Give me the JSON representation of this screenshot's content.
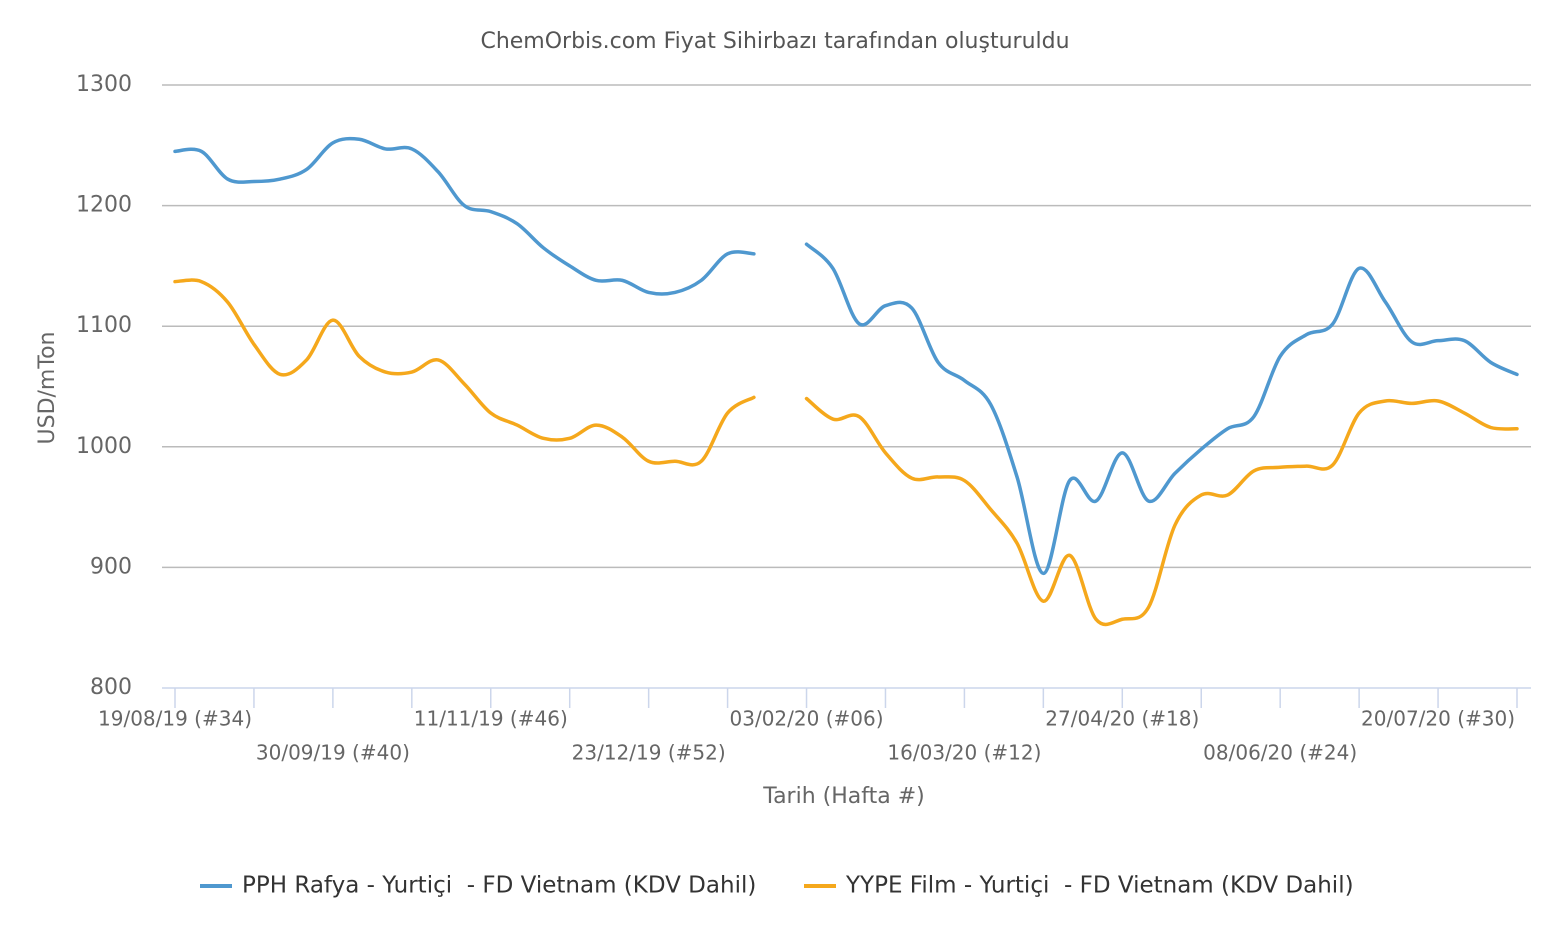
{
  "chart_data": {
    "type": "line",
    "title": "ChemOrbis.com Fiyat Sihirbazı tarafından oluşturuldu",
    "y_label": "USD/mTon",
    "x_label": "Tarih (Hafta #)",
    "categories": [
      "19/08/19 (#34)",
      null,
      null,
      null,
      null,
      null,
      "30/09/19 (#40)",
      null,
      null,
      null,
      null,
      null,
      "11/11/19 (#46)",
      null,
      null,
      null,
      null,
      null,
      "23/12/19 (#52)",
      null,
      null,
      null,
      null,
      null,
      "03/02/20 (#06)",
      null,
      null,
      null,
      null,
      null,
      "16/03/20 (#12)",
      null,
      null,
      null,
      null,
      null,
      "27/04/20 (#18)",
      null,
      null,
      null,
      null,
      null,
      "08/06/20 (#24)",
      null,
      null,
      null,
      null,
      null,
      "20/07/20 (#30)",
      null,
      null,
      null
    ],
    "series": [
      {
        "name": "PPH Rafya - Yurtiçi  - FD Vietnam (KDV Dahil)",
        "color": "#4f98cf",
        "values": [
          1245,
          1245,
          1222,
          1220,
          1222,
          1230,
          1252,
          1255,
          1247,
          1247,
          1228,
          1200,
          1195,
          1185,
          1165,
          1150,
          1138,
          1138,
          1128,
          1128,
          1138,
          1160,
          1160,
          null,
          1168,
          1148,
          1102,
          1117,
          1115,
          1070,
          1055,
          1035,
          975,
          895,
          972,
          955,
          995,
          955,
          978,
          998,
          1015,
          1025,
          1075,
          1093,
          1102,
          1148,
          1120,
          1087,
          1088,
          1088,
          1070,
          1060
        ]
      },
      {
        "name": "YYPE Film - Yurtiçi  - FD Vietnam (KDV Dahil)",
        "color": "#f5a81c",
        "values": [
          1137,
          1137,
          1120,
          1085,
          1060,
          1072,
          1105,
          1075,
          1062,
          1062,
          1072,
          1052,
          1028,
          1018,
          1007,
          1007,
          1018,
          1008,
          988,
          988,
          988,
          1028,
          1041,
          null,
          1040,
          1023,
          1025,
          995,
          974,
          975,
          972,
          948,
          920,
          872,
          910,
          857,
          857,
          867,
          935,
          960,
          960,
          980,
          983,
          984,
          985,
          1028,
          1038,
          1036,
          1038,
          1028,
          1016,
          1015
        ]
      }
    ],
    "ylim": [
      800,
      1300
    ],
    "yticks": [
      800,
      900,
      1000,
      1100,
      1200,
      1300
    ],
    "grid": true,
    "legend": "bottom"
  }
}
